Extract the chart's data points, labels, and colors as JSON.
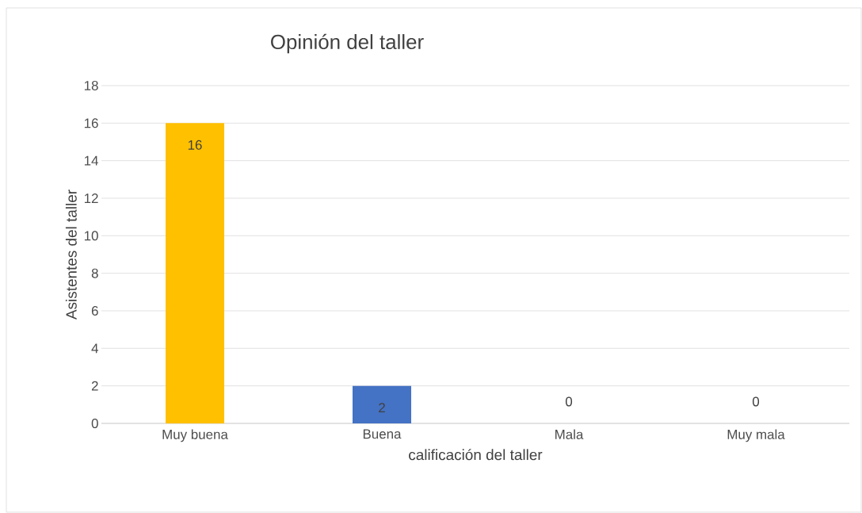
{
  "chart_data": {
    "type": "bar",
    "title": "Opinión del taller",
    "xlabel": "calificación del taller",
    "ylabel": "Asistentes del taller",
    "categories": [
      "Muy buena",
      "Buena",
      "Mala",
      "Muy mala"
    ],
    "values": [
      16,
      2,
      0,
      0
    ],
    "colors": [
      "#ffc000",
      "#4472c4",
      "#a5a5a5",
      "#ed7d31"
    ],
    "ylim": [
      0,
      18
    ],
    "yticks": [
      0,
      2,
      4,
      6,
      8,
      10,
      12,
      14,
      16,
      18
    ],
    "grid": "y",
    "data_labels": true
  }
}
